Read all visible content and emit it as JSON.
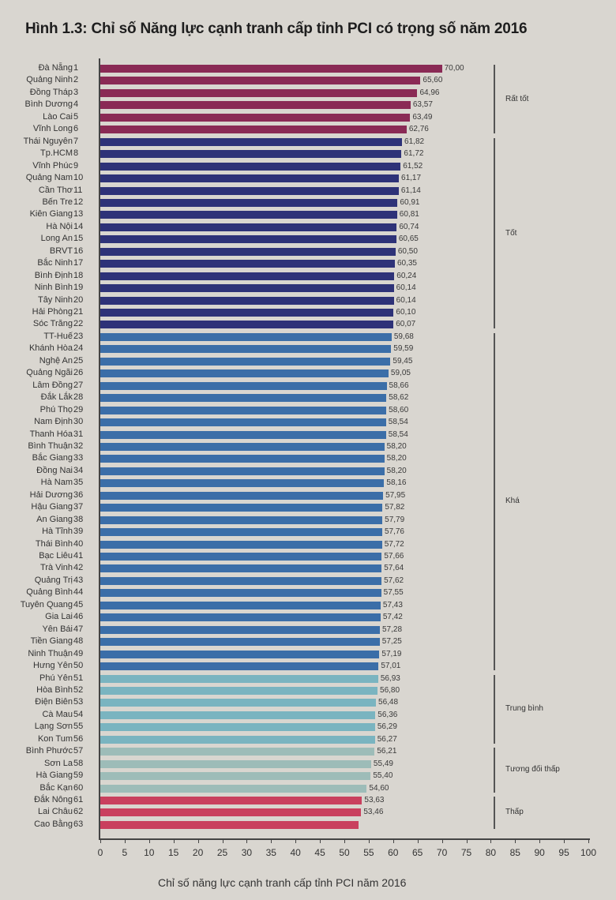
{
  "title": "Hình 1.3: Chỉ số Năng lực cạnh tranh cấp tỉnh PCI có trọng số năm 2016",
  "colors": {
    "rat_tot": "#8a2a55",
    "tot": "#2e3278",
    "kha": "#3b6ea8",
    "trung_binh": "#7ab4c0",
    "tuong_doi_thap": "#9dbcb8",
    "thap": "#c9405e"
  },
  "chart_data": {
    "type": "bar",
    "orientation": "horizontal",
    "title": "Hình 1.3: Chỉ số Năng lực cạnh tranh cấp tỉnh PCI có trọng số năm 2016",
    "xlabel": "Chỉ số năng lực cạnh tranh cấp tỉnh PCI năm 2016",
    "ylabel": "",
    "xlim": [
      0,
      100
    ],
    "xticks": [
      0,
      5,
      10,
      15,
      20,
      25,
      30,
      35,
      40,
      45,
      50,
      55,
      60,
      65,
      70,
      75,
      80,
      85,
      90,
      95,
      100
    ],
    "grid": false,
    "categories": [
      "Đà Nẵng",
      "Quảng Ninh",
      "Đồng Tháp",
      "Bình Dương",
      "Lào Cai",
      "Vĩnh Long",
      "Thái Nguyên",
      "Tp.HCM",
      "Vĩnh Phúc",
      "Quảng Nam",
      "Cần Thơ",
      "Bến Tre",
      "Kiên Giang",
      "Hà Nội",
      "Long An",
      "BRVT",
      "Bắc Ninh",
      "Bình Định",
      "Ninh Bình",
      "Tây Ninh",
      "Hải Phòng",
      "Sóc Trăng",
      "TT-Huế",
      "Khánh Hòa",
      "Nghệ An",
      "Quảng Ngãi",
      "Lâm Đồng",
      "Đắk Lắk",
      "Phú Thọ",
      "Nam Định",
      "Thanh Hóa",
      "Bình Thuận",
      "Bắc Giang",
      "Đồng Nai",
      "Hà Nam",
      "Hải Dương",
      "Hậu Giang",
      "An Giang",
      "Hà Tĩnh",
      "Thái Bình",
      "Bạc Liêu",
      "Trà Vinh",
      "Quảng Trị",
      "Quảng Bình",
      "Tuyên Quang",
      "Gia Lai",
      "Yên Bái",
      "Tiền Giang",
      "Ninh Thuận",
      "Hưng Yên",
      "Phú Yên",
      "Hòa Bình",
      "Điện Biên",
      "Cà Mau",
      "Lạng Sơn",
      "Kon Tum",
      "Bình Phước",
      "Sơn La",
      "Hà Giang",
      "Bắc Kạn",
      "Đắk Nông",
      "Lai Châu",
      "Cao Bằng"
    ],
    "ranks": [
      1,
      2,
      3,
      4,
      5,
      6,
      7,
      8,
      9,
      10,
      11,
      12,
      13,
      14,
      15,
      16,
      17,
      18,
      19,
      20,
      21,
      22,
      23,
      24,
      25,
      26,
      27,
      28,
      29,
      30,
      31,
      32,
      33,
      34,
      35,
      36,
      37,
      38,
      39,
      40,
      41,
      42,
      43,
      44,
      45,
      46,
      47,
      48,
      49,
      50,
      51,
      52,
      53,
      54,
      55,
      56,
      57,
      58,
      59,
      60,
      61,
      62,
      63
    ],
    "values": [
      70.0,
      65.6,
      64.96,
      63.57,
      63.49,
      62.76,
      61.82,
      61.72,
      61.52,
      61.17,
      61.14,
      60.91,
      60.81,
      60.74,
      60.65,
      60.5,
      60.35,
      60.24,
      60.14,
      60.14,
      60.1,
      60.07,
      59.68,
      59.59,
      59.45,
      59.05,
      58.66,
      58.62,
      58.6,
      58.54,
      58.54,
      58.2,
      58.2,
      58.2,
      58.16,
      57.95,
      57.82,
      57.79,
      57.76,
      57.72,
      57.66,
      57.64,
      57.62,
      57.55,
      57.43,
      57.42,
      57.28,
      57.25,
      57.19,
      57.01,
      56.93,
      56.8,
      56.48,
      56.36,
      56.29,
      56.27,
      56.21,
      55.49,
      55.4,
      54.6,
      53.63,
      53.46,
      52.99
    ],
    "value_labels": [
      "70,00",
      "65,60",
      "64,96",
      "63,57",
      "63,49",
      "62,76",
      "61,82",
      "61,72",
      "61,52",
      "61,17",
      "61,14",
      "60,91",
      "60,81",
      "60,74",
      "60,65",
      "60,50",
      "60,35",
      "60,24",
      "60,14",
      "60,14",
      "60,10",
      "60,07",
      "59,68",
      "59,59",
      "59,45",
      "59,05",
      "58,66",
      "58,62",
      "58,60",
      "58,54",
      "58,54",
      "58,20",
      "58,20",
      "58,20",
      "58,16",
      "57,95",
      "57,82",
      "57,79",
      "57,76",
      "57,72",
      "57,66",
      "57,64",
      "57,62",
      "57,55",
      "57,43",
      "57,42",
      "57,28",
      "57,25",
      "57,19",
      "57,01",
      "56,93",
      "56,80",
      "56,48",
      "56,36",
      "56,29",
      "56,27",
      "56,21",
      "55,49",
      "55,40",
      "54,60",
      "53,63",
      "53,46",
      ""
    ],
    "groups": [
      {
        "label": "Rất tốt",
        "from_rank": 1,
        "to_rank": 6,
        "color_key": "rat_tot"
      },
      {
        "label": "Tốt",
        "from_rank": 7,
        "to_rank": 22,
        "color_key": "tot"
      },
      {
        "label": "Khá",
        "from_rank": 23,
        "to_rank": 50,
        "color_key": "kha"
      },
      {
        "label": "Trung bình",
        "from_rank": 51,
        "to_rank": 56,
        "color_key": "trung_binh"
      },
      {
        "label": "Tương đối thấp",
        "from_rank": 57,
        "to_rank": 60,
        "color_key": "tuong_doi_thap"
      },
      {
        "label": "Thấp",
        "from_rank": 61,
        "to_rank": 63,
        "color_key": "thap"
      }
    ],
    "legend": null
  }
}
